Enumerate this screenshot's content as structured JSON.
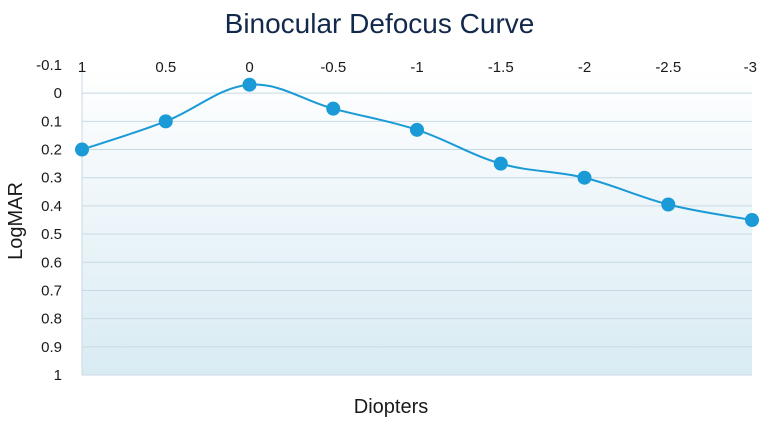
{
  "chart_data": {
    "type": "line",
    "title": "Binocular Defocus Curve",
    "xlabel": "Diopters",
    "ylabel": "LogMAR",
    "x_ticks": [
      "1",
      "0.5",
      "0",
      "-0.5",
      "-1",
      "-1.5",
      "-2",
      "-2.5",
      "-3"
    ],
    "x": [
      1,
      0.5,
      0,
      -0.5,
      -1,
      -1.5,
      -2,
      -2.5,
      -3
    ],
    "y_ticks": [
      "-0.1",
      "0",
      "0.1",
      "0.2",
      "0.3",
      "0.4",
      "0.5",
      "0.6",
      "0.7",
      "0.8",
      "0.9",
      "1"
    ],
    "ylim": [
      -0.1,
      1
    ],
    "y_inverted": true,
    "x_axis_position": "top",
    "grid": true,
    "series": [
      {
        "values": [
          0.2,
          0.1,
          -0.03,
          0.055,
          0.13,
          0.25,
          0.3,
          0.395,
          0.45
        ]
      }
    ],
    "colors": {
      "line": "#1a9ad6",
      "marker": "#1a9ad6",
      "title": "#13294b",
      "grid": "#c9d9e3",
      "bg_top": "#ffffff",
      "bg_bottom": "#d9ebf3"
    }
  }
}
